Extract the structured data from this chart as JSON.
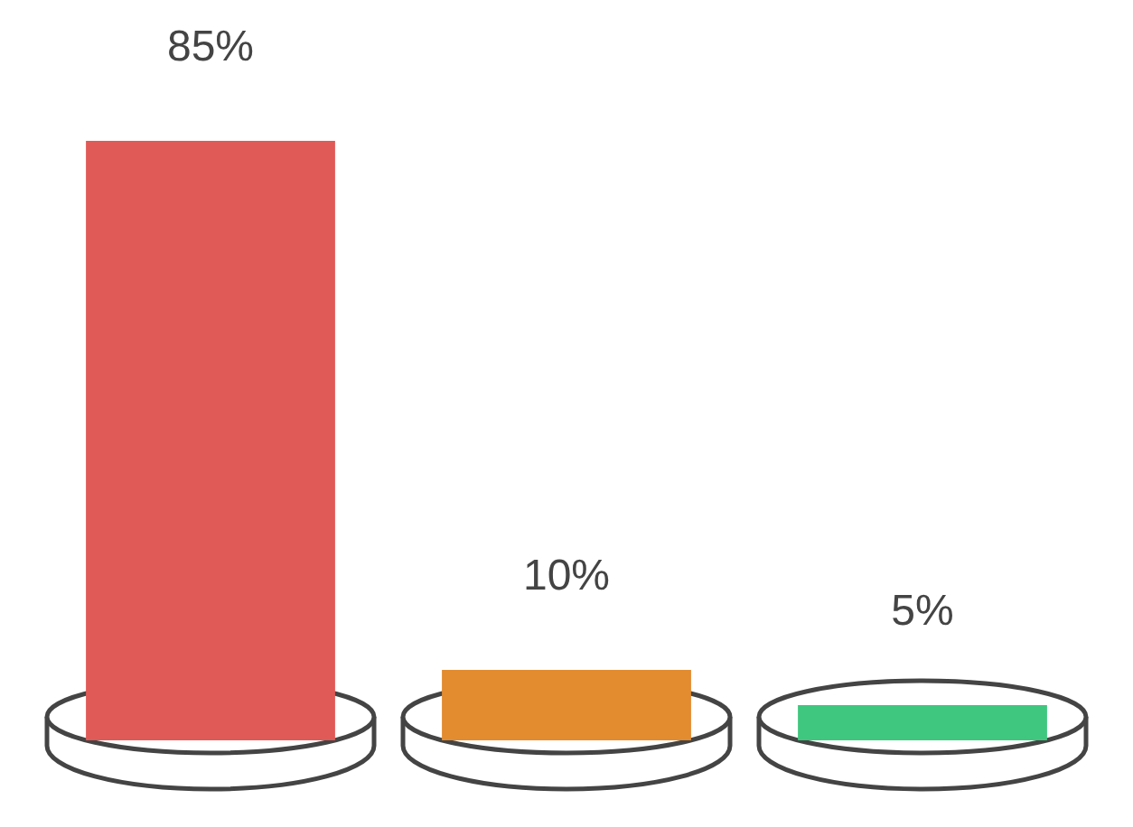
{
  "chart_data": {
    "type": "bar",
    "categories": [
      null,
      null,
      null
    ],
    "values": [
      85,
      10,
      5
    ],
    "colors": [
      "#e05a57",
      "#e38b2f",
      "#3fc77f"
    ],
    "value_labels": [
      "85%",
      "10%",
      "5%"
    ]
  }
}
